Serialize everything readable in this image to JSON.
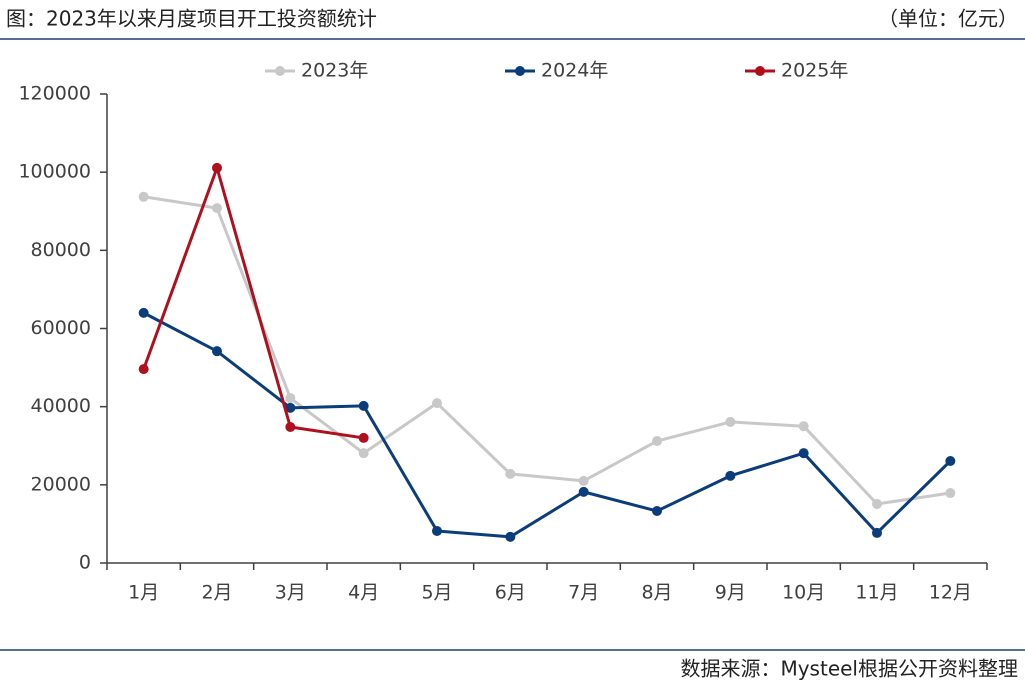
{
  "chart_data": {
    "type": "line",
    "title": "图：2023年以来月度项目开工投资额统计",
    "unit": "（单位：亿元）",
    "source": "数据来源：Mysteel根据公开资料整理",
    "categories": [
      "1月",
      "2月",
      "3月",
      "4月",
      "5月",
      "6月",
      "7月",
      "8月",
      "9月",
      "10月",
      "11月",
      "12月"
    ],
    "series": [
      {
        "name": "2023年",
        "color": "#c8c8c8",
        "values": [
          93700,
          90800,
          42200,
          28100,
          40900,
          22800,
          21000,
          31200,
          36100,
          35000,
          15100,
          17900
        ]
      },
      {
        "name": "2024年",
        "color": "#0b3d7a",
        "values": [
          64000,
          54200,
          39700,
          40200,
          8200,
          6700,
          18200,
          13300,
          22300,
          28100,
          7700,
          26100
        ]
      },
      {
        "name": "2025年",
        "color": "#b0101e",
        "values": [
          49600,
          101100,
          34800,
          32000,
          null,
          null,
          null,
          null,
          null,
          null,
          null,
          null
        ]
      }
    ],
    "ylim": [
      0,
      120000
    ],
    "yticks": [
      0,
      20000,
      40000,
      60000,
      80000,
      100000,
      120000
    ],
    "legend": "top"
  }
}
